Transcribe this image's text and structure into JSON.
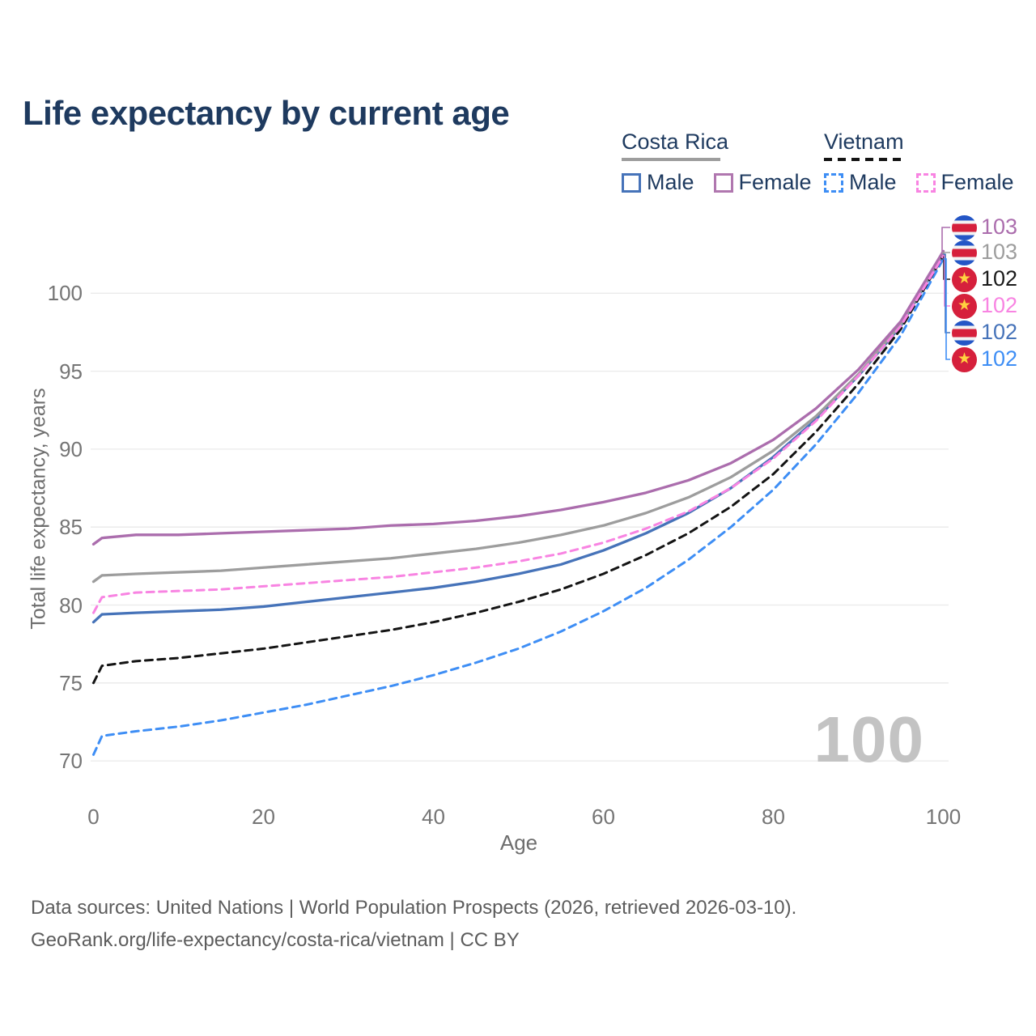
{
  "title": "Life expectancy by current age",
  "watermark_age": "100",
  "legend": {
    "groups": [
      {
        "label": "Costa Rica",
        "rule_style": "solid",
        "rule_color": "#9d9d9d",
        "items": [
          {
            "label": "Male",
            "color": "#4673b9",
            "dashed": false
          },
          {
            "label": "Female",
            "color": "#b077af",
            "dashed": false
          }
        ]
      },
      {
        "label": "Vietnam",
        "rule_style": "dashed",
        "rule_color": "#141414",
        "items": [
          {
            "label": "Male",
            "color": "#3e8ef5",
            "dashed": true
          },
          {
            "label": "Female",
            "color": "#f884e2",
            "dashed": true
          }
        ]
      }
    ]
  },
  "x_axis": {
    "title": "Age",
    "ticks": [
      0,
      20,
      40,
      60,
      80,
      100
    ]
  },
  "y_axis": {
    "title": "Total life expectancy, years",
    "ticks": [
      70,
      75,
      80,
      85,
      90,
      95,
      100
    ]
  },
  "end_labels": [
    {
      "series": "Costa Rica Female",
      "flag": "costa-rica",
      "value": "103",
      "color": "#ab6dad"
    },
    {
      "series": "Costa Rica",
      "flag": "costa-rica",
      "value": "103",
      "color": "#9d9d9d"
    },
    {
      "series": "Vietnam",
      "flag": "vietnam",
      "value": "102",
      "color": "#1a1a1a"
    },
    {
      "series": "Vietnam Female",
      "flag": "vietnam",
      "value": "102",
      "color": "#f884e2"
    },
    {
      "series": "Costa Rica Male",
      "flag": "costa-rica",
      "value": "102",
      "color": "#4673b9"
    },
    {
      "series": "Vietnam Male",
      "flag": "vietnam",
      "value": "102",
      "color": "#3e8ef5"
    }
  ],
  "footer": {
    "line1": "Data sources: United Nations | World Population Prospects (2026, retrieved 2026-03-10).",
    "line2": "GeoRank.org/life-expectancy/costa-rica/vietnam | CC BY"
  },
  "flag_colors": {
    "costa_rica_blue": "#2456c6",
    "costa_rica_red": "#d6203c",
    "vietnam_red": "#d6203c",
    "vietnam_star": "#ffd23f"
  },
  "chart_data": {
    "type": "line",
    "title": "Life expectancy by current age",
    "xlabel": "Age",
    "ylabel": "Total life expectancy, years",
    "xlim": [
      0,
      100
    ],
    "ylim": [
      68.5,
      104
    ],
    "grid": "horizontal",
    "legend_position": "top-right",
    "x": [
      0,
      1,
      5,
      10,
      15,
      20,
      25,
      30,
      35,
      40,
      45,
      50,
      55,
      60,
      65,
      70,
      75,
      80,
      85,
      90,
      95,
      100
    ],
    "series": [
      {
        "name": "Costa Rica Male",
        "country": "Costa Rica",
        "sex": "male",
        "color": "#4673b9",
        "dashed": false,
        "end_label": "102",
        "values": [
          78.9,
          79.4,
          79.5,
          79.6,
          79.7,
          79.9,
          80.2,
          80.5,
          80.8,
          81.1,
          81.5,
          82.0,
          82.6,
          83.5,
          84.6,
          85.9,
          87.5,
          89.5,
          91.9,
          94.7,
          97.9,
          102.5
        ]
      },
      {
        "name": "Costa Rica",
        "country": "Costa Rica",
        "sex": "both",
        "color": "#9d9d9d",
        "dashed": false,
        "end_label": "103",
        "values": [
          81.5,
          81.9,
          82.0,
          82.1,
          82.2,
          82.4,
          82.6,
          82.8,
          83.0,
          83.3,
          83.6,
          84.0,
          84.5,
          85.1,
          85.9,
          86.9,
          88.2,
          89.9,
          92.1,
          94.8,
          98.0,
          102.6
        ]
      },
      {
        "name": "Costa Rica Female",
        "country": "Costa Rica",
        "sex": "female",
        "color": "#ab6dad",
        "dashed": false,
        "end_label": "103",
        "values": [
          83.9,
          84.3,
          84.5,
          84.5,
          84.6,
          84.7,
          84.8,
          84.9,
          85.1,
          85.2,
          85.4,
          85.7,
          86.1,
          86.6,
          87.2,
          88.0,
          89.1,
          90.6,
          92.6,
          95.1,
          98.2,
          102.7
        ]
      },
      {
        "name": "Vietnam Male",
        "country": "Vietnam",
        "sex": "male",
        "color": "#3e8ef5",
        "dashed": true,
        "end_label": "102",
        "values": [
          70.4,
          71.6,
          71.9,
          72.2,
          72.6,
          73.1,
          73.6,
          74.2,
          74.8,
          75.5,
          76.3,
          77.2,
          78.3,
          79.6,
          81.1,
          82.9,
          85.0,
          87.4,
          90.3,
          93.6,
          97.3,
          102.2
        ]
      },
      {
        "name": "Vietnam",
        "country": "Vietnam",
        "sex": "both",
        "color": "#141414",
        "dashed": true,
        "end_label": "102",
        "values": [
          75.0,
          76.1,
          76.4,
          76.6,
          76.9,
          77.2,
          77.6,
          78.0,
          78.4,
          78.9,
          79.5,
          80.2,
          81.0,
          82.0,
          83.2,
          84.6,
          86.3,
          88.4,
          91.1,
          94.2,
          97.7,
          102.4
        ]
      },
      {
        "name": "Vietnam Female",
        "country": "Vietnam",
        "sex": "female",
        "color": "#f884e2",
        "dashed": true,
        "end_label": "102",
        "values": [
          79.5,
          80.5,
          80.8,
          80.9,
          81.0,
          81.2,
          81.4,
          81.6,
          81.8,
          82.1,
          82.4,
          82.8,
          83.3,
          84.0,
          84.9,
          86.0,
          87.5,
          89.4,
          91.8,
          94.7,
          97.9,
          102.4
        ]
      }
    ]
  }
}
